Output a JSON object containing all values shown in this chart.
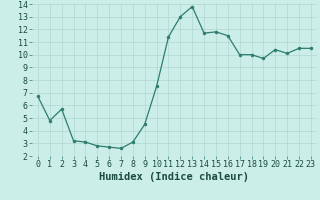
{
  "x": [
    0,
    1,
    2,
    3,
    4,
    5,
    6,
    7,
    8,
    9,
    10,
    11,
    12,
    13,
    14,
    15,
    16,
    17,
    18,
    19,
    20,
    21,
    22,
    23
  ],
  "y": [
    6.7,
    4.8,
    5.7,
    3.2,
    3.1,
    2.8,
    2.7,
    2.6,
    3.1,
    4.5,
    7.5,
    11.4,
    13.0,
    13.8,
    11.7,
    11.8,
    11.5,
    10.0,
    10.0,
    9.7,
    10.4,
    10.1,
    10.5,
    10.5
  ],
  "xlabel": "Humidex (Indice chaleur)",
  "ylim": [
    2,
    14
  ],
  "xlim_min": -0.5,
  "xlim_max": 23.5,
  "yticks": [
    2,
    3,
    4,
    5,
    6,
    7,
    8,
    9,
    10,
    11,
    12,
    13,
    14
  ],
  "xticks": [
    0,
    1,
    2,
    3,
    4,
    5,
    6,
    7,
    8,
    9,
    10,
    11,
    12,
    13,
    14,
    15,
    16,
    17,
    18,
    19,
    20,
    21,
    22,
    23
  ],
  "line_color": "#2d7d6f",
  "marker_color": "#2d7d6f",
  "bg_color": "#cceee8",
  "grid_color": "#b0d8d0",
  "xlabel_fontsize": 7.5,
  "tick_fontsize": 6.0,
  "label_color": "#1a4a40"
}
